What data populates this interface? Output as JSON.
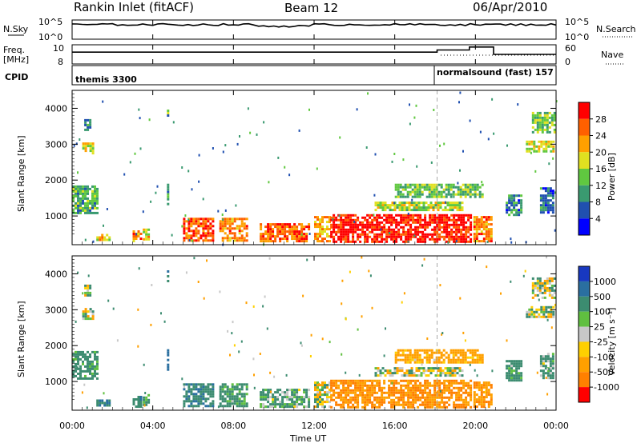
{
  "header": {
    "title": "Rankin Inlet (fitACF)",
    "beam": "Beam 12",
    "date": "06/Apr/2010"
  },
  "panels": {
    "nsky": {
      "left_label": "N.Sky",
      "right_label": "N.Search",
      "left_ticks": [
        "10^5",
        "10^0"
      ],
      "right_ticks": [
        "10^5",
        "10^0"
      ]
    },
    "freq": {
      "left_label_1": "Freq.",
      "left_label_2": "[MHz]",
      "right_label": "Nave",
      "left_ticks": [
        "10",
        "8"
      ],
      "right_ticks": [
        "60",
        "0"
      ]
    },
    "cpid": {
      "label": "CPID",
      "segments": [
        {
          "text": "themis 3300",
          "from_hour": 0
        },
        {
          "text": "normalsound (fast) 157",
          "from_hour": 18
        }
      ]
    }
  },
  "axes": {
    "x_label": "Time UT",
    "x_ticks": [
      "00:00",
      "04:00",
      "08:00",
      "12:00",
      "16:00",
      "20:00",
      "00:00"
    ],
    "x_tick_hours": [
      0,
      4,
      8,
      12,
      16,
      20,
      24
    ],
    "y_label": "Slant Range [km]",
    "y_ticks": [
      "1000",
      "2000",
      "3000",
      "4000"
    ],
    "y_tick_values": [
      1000,
      2000,
      3000,
      4000
    ],
    "y_range": [
      200,
      4500
    ]
  },
  "colorbars": {
    "power": {
      "label": "Power [dB]",
      "ticks": [
        "4",
        "8",
        "12",
        "16",
        "20",
        "24",
        "28"
      ],
      "colors": [
        "#0000ff",
        "#2050b0",
        "#3a9a70",
        "#60c840",
        "#e0e020",
        "#ffa000",
        "#ff6000",
        "#ff0000"
      ]
    },
    "velocity": {
      "label": "Velocity [m s⁻¹]",
      "ticks": [
        "1000",
        "500",
        "100",
        "25",
        "-25",
        "-100",
        "-500",
        "-1000"
      ],
      "colors": [
        "#1838c0",
        "#2a6fa0",
        "#3c8c70",
        "#60c040",
        "#c8c8c8",
        "#ffd000",
        "#ffa000",
        "#ff8000",
        "#ff0000"
      ]
    }
  },
  "chart_data": {
    "type": "heatmap",
    "title": "Rankin Inlet (fitACF)",
    "xlabel": "Time UT",
    "ylabel": "Slant Range [km]",
    "xlim_hours": [
      0,
      24
    ],
    "ylim_km": [
      200,
      4500
    ],
    "n_sky": {
      "range": [
        "10^0",
        "10^5"
      ],
      "level_log10": 3.8
    },
    "frequency_mhz": {
      "segments": [
        {
          "from_hour": 0,
          "to_hour": 18.1,
          "value": 9.6
        },
        {
          "from_hour": 18.1,
          "to_hour": 19.7,
          "value": 9.9
        },
        {
          "from_hour": 19.7,
          "to_hour": 20.9,
          "value": 10.3
        },
        {
          "from_hour": 20.9,
          "to_hour": 24,
          "value": 9.3
        }
      ]
    },
    "echo_regions": [
      {
        "t0": 0.0,
        "t1": 1.2,
        "r0": 1050,
        "r1": 1850,
        "power_db": 12,
        "velocity_ms": 150
      },
      {
        "t0": 0.5,
        "t1": 1.0,
        "r0": 2750,
        "r1": 3050,
        "power_db": 18,
        "velocity_ms": 0
      },
      {
        "t0": 0.6,
        "t1": 0.9,
        "r0": 3400,
        "r1": 3700,
        "power_db": 8,
        "velocity_ms": 0
      },
      {
        "t0": 1.2,
        "t1": 1.8,
        "r0": 300,
        "r1": 500,
        "power_db": 20,
        "velocity_ms": 300
      },
      {
        "t0": 3.0,
        "t1": 3.4,
        "r0": 300,
        "r1": 600,
        "power_db": 24,
        "velocity_ms": 200
      },
      {
        "t0": 3.5,
        "t1": 3.8,
        "r0": 350,
        "r1": 650,
        "power_db": 20,
        "velocity_ms": 150
      },
      {
        "t0": 4.7,
        "t1": 4.8,
        "r0": 3800,
        "r1": 4100,
        "power_db": 12,
        "velocity_ms": 200
      },
      {
        "t0": 4.7,
        "t1": 4.8,
        "r0": 1300,
        "r1": 1900,
        "power_db": 10,
        "velocity_ms": 700
      },
      {
        "t0": 5.5,
        "t1": 7.0,
        "r0": 300,
        "r1": 950,
        "power_db": 26,
        "velocity_ms": 250
      },
      {
        "t0": 7.3,
        "t1": 8.7,
        "r0": 300,
        "r1": 950,
        "power_db": 24,
        "velocity_ms": 150
      },
      {
        "t0": 9.3,
        "t1": 11.8,
        "r0": 300,
        "r1": 800,
        "power_db": 26,
        "velocity_ms": 100
      },
      {
        "t0": 12.0,
        "t1": 12.8,
        "r0": 300,
        "r1": 1000,
        "power_db": 22,
        "velocity_ms": 0
      },
      {
        "t0": 12.8,
        "t1": 19.8,
        "r0": 300,
        "r1": 1050,
        "power_db": 30,
        "velocity_ms": -300
      },
      {
        "t0": 15.0,
        "t1": 19.3,
        "r0": 1150,
        "r1": 1400,
        "power_db": 16,
        "velocity_ms": 0
      },
      {
        "t0": 16.0,
        "t1": 20.4,
        "r0": 1500,
        "r1": 1900,
        "power_db": 14,
        "velocity_ms": -150
      },
      {
        "t0": 19.9,
        "t1": 20.8,
        "r0": 300,
        "r1": 1000,
        "power_db": 24,
        "velocity_ms": -300
      },
      {
        "t0": 21.5,
        "t1": 22.3,
        "r0": 1000,
        "r1": 1600,
        "power_db": 8,
        "velocity_ms": 150
      },
      {
        "t0": 22.5,
        "t1": 23.9,
        "r0": 2800,
        "r1": 3100,
        "power_db": 18,
        "velocity_ms": 0
      },
      {
        "t0": 22.8,
        "t1": 23.9,
        "r0": 3300,
        "r1": 3900,
        "power_db": 14,
        "velocity_ms": 0
      },
      {
        "t0": 23.2,
        "t1": 23.9,
        "r0": 1100,
        "r1": 1800,
        "power_db": 8,
        "velocity_ms": 100
      }
    ]
  }
}
